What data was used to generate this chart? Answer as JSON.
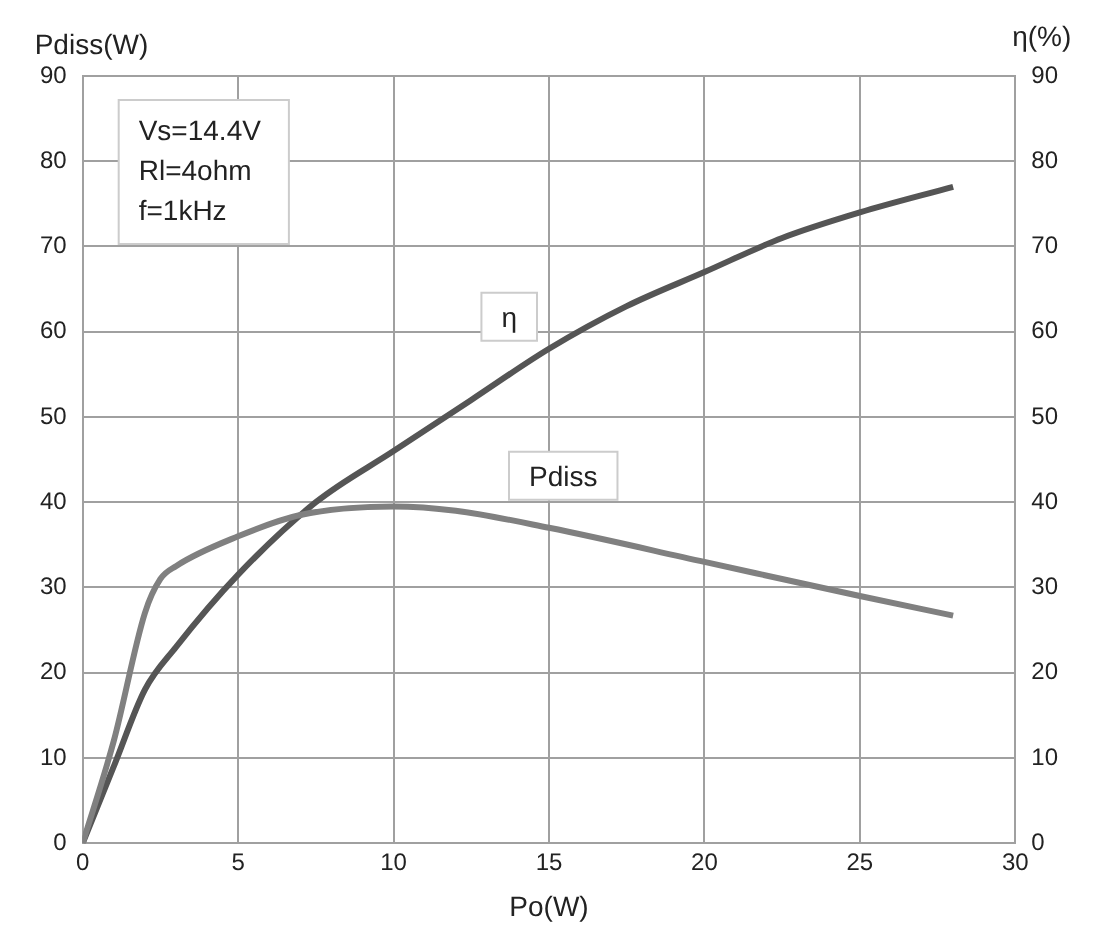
{
  "chart_data": {
    "type": "line",
    "xlabel": "Po(W)",
    "ylabel": "Pdiss(W)",
    "y2label": "η(%)",
    "xlim": [
      0,
      30
    ],
    "xticks": [
      0,
      5,
      10,
      15,
      20,
      25,
      30
    ],
    "ylim": [
      0,
      90
    ],
    "yticks": [
      0,
      10,
      20,
      30,
      40,
      50,
      60,
      70,
      80,
      90
    ],
    "y2lim": [
      0,
      90
    ],
    "y2ticks": [
      0,
      10,
      20,
      30,
      40,
      50,
      60,
      70,
      80,
      90
    ],
    "grid": true,
    "legend": false,
    "marker": "none",
    "line_style": "solid",
    "annotations": [
      "Vs=14.4V\nRl=4ohm\nf=1kHz"
    ],
    "series": [
      {
        "name": "Pdiss",
        "color": "#808080",
        "x": [
          0,
          1,
          2,
          2.5,
          3,
          5,
          7,
          10,
          12,
          15,
          20,
          25,
          28
        ],
        "values": [
          0,
          12,
          27,
          31,
          32.5,
          36,
          38.5,
          39.5,
          39,
          37,
          33,
          29,
          26.7
        ]
      },
      {
        "name": "η",
        "color": "#555555",
        "axis": "y2",
        "x": [
          0,
          1,
          2,
          3,
          5,
          7.5,
          10,
          12.5,
          15,
          17.5,
          20,
          22.5,
          25,
          28
        ],
        "values": [
          0,
          9,
          18,
          23,
          31.5,
          40,
          46,
          52,
          58,
          63,
          67,
          71,
          74,
          77
        ]
      }
    ]
  }
}
